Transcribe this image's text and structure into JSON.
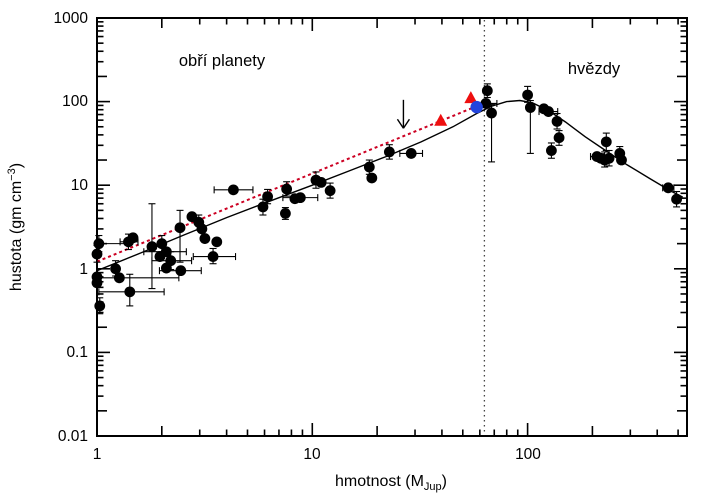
{
  "chart_data": {
    "type": "scatter",
    "title": "",
    "xlabel": "hmotnost (M_Jup)",
    "ylabel": "hustota (gm cm^-3)",
    "xlabel_parts": {
      "pre": "hmotnost (M",
      "sub": "Jup",
      "post": ")"
    },
    "ylabel_parts": {
      "pre": "hustota (gm cm",
      "sup": "−3",
      "post": ")"
    },
    "xscale": "log",
    "yscale": "log",
    "xlim": [
      1,
      550
    ],
    "ylim": [
      0.01,
      1000
    ],
    "grid": false,
    "legend": "none",
    "x_tick_labels": [
      "1",
      "10",
      "100"
    ],
    "y_tick_labels": [
      "1000",
      "100",
      "10",
      "1",
      "0.1",
      "0.01"
    ],
    "annotations": {
      "planet_region": "obří planety",
      "star_region": "hvězdy",
      "divider_mass": 63,
      "arrow": {
        "mass": 26.5,
        "from_density": 105,
        "to_density": 48
      }
    },
    "colors": {
      "points": "#000000",
      "fit_line": "#cc0022",
      "model_curve": "#000000",
      "triangles": "#ee0f0f",
      "highlight_point": "#2244dd",
      "divider": "#444444"
    },
    "series": [
      {
        "name": "model-curve-solid-black",
        "type": "line",
        "color": "#000000",
        "width": 1.4,
        "dash": "",
        "points": [
          [
            1,
            0.95
          ],
          [
            1.6,
            1.55
          ],
          [
            2.5,
            2.5
          ],
          [
            4,
            4.1
          ],
          [
            6.5,
            6.6
          ],
          [
            10,
            10
          ],
          [
            15,
            15
          ],
          [
            22,
            22
          ],
          [
            32,
            33
          ],
          [
            45,
            50
          ],
          [
            58,
            72
          ],
          [
            68,
            88
          ],
          [
            80,
            100
          ],
          [
            92,
            103
          ],
          [
            105,
            97
          ],
          [
            125,
            78
          ],
          [
            150,
            57
          ],
          [
            185,
            38
          ],
          [
            230,
            26
          ],
          [
            290,
            17.5
          ],
          [
            370,
            12
          ],
          [
            460,
            8.6
          ],
          [
            525,
            7.2
          ]
        ]
      },
      {
        "name": "fit-line-dashed-red",
        "type": "line",
        "color": "#cc0022",
        "width": 2,
        "dash": "3 3",
        "points": [
          [
            1,
            1.22
          ],
          [
            58,
            88
          ]
        ]
      },
      {
        "name": "measured-objects-black",
        "type": "scatter",
        "marker": "circle",
        "color": "#000000",
        "size": 5.4,
        "points": [
          {
            "m": 1.02,
            "d": 2.0,
            "xe": [
              1.0,
              1.38
            ],
            "ye": [
              1.6,
              2.5
            ]
          },
          {
            "m": 1.0,
            "d": 1.5,
            "ye": [
              1.2,
              1.9
            ]
          },
          {
            "m": 1.0,
            "d": 0.8
          },
          {
            "m": 1.0,
            "d": 0.68
          },
          {
            "m": 1.03,
            "d": 0.36,
            "ye": [
              0.29,
              0.45
            ]
          },
          {
            "m": 1.22,
            "d": 1.0,
            "ye": [
              0.82,
              1.25
            ]
          },
          {
            "m": 1.27,
            "d": 0.78,
            "xe": [
              1.0,
              2.4
            ]
          },
          {
            "m": 1.4,
            "d": 2.1,
            "xe": [
              1.28,
              1.55
            ],
            "ye": [
              1.7,
              2.6
            ]
          },
          {
            "m": 1.47,
            "d": 2.35
          },
          {
            "m": 1.42,
            "d": 0.53,
            "xe": [
              1.02,
              2.05
            ],
            "ye": [
              0.36,
              0.86
            ]
          },
          {
            "m": 1.8,
            "d": 1.84,
            "ye": [
              0.58,
              6.0
            ]
          },
          {
            "m": 1.96,
            "d": 1.4
          },
          {
            "m": 2.0,
            "d": 2.0,
            "ye": [
              1.6,
              2.5
            ]
          },
          {
            "m": 2.1,
            "d": 1.6,
            "xe": [
              1.65,
              2.6
            ]
          },
          {
            "m": 2.2,
            "d": 1.25,
            "xe": [
              1.8,
              2.75
            ],
            "ye": [
              0.98,
              1.6
            ]
          },
          {
            "m": 2.1,
            "d": 1.02
          },
          {
            "m": 2.45,
            "d": 0.95,
            "xe": [
              1.95,
              3.05
            ]
          },
          {
            "m": 2.43,
            "d": 3.1,
            "ye": [
              1.2,
              5.0
            ]
          },
          {
            "m": 2.76,
            "d": 4.2
          },
          {
            "m": 2.97,
            "d": 3.6,
            "ye": [
              2.9,
              4.4
            ]
          },
          {
            "m": 3.07,
            "d": 3.0
          },
          {
            "m": 3.17,
            "d": 2.3
          },
          {
            "m": 3.46,
            "d": 1.4,
            "xe": [
              2.8,
              4.4
            ],
            "ye": [
              1.15,
              1.75
            ]
          },
          {
            "m": 3.6,
            "d": 2.1
          },
          {
            "m": 4.3,
            "d": 8.8,
            "xe": [
              3.5,
              5.3
            ]
          },
          {
            "m": 5.9,
            "d": 5.5,
            "ye": [
              4.4,
              6.8
            ]
          },
          {
            "m": 6.2,
            "d": 7.3,
            "ye": [
              6.0,
              8.9
            ]
          },
          {
            "m": 7.6,
            "d": 9.0,
            "ye": [
              7.4,
              11
            ]
          },
          {
            "m": 7.5,
            "d": 4.6,
            "ye": [
              3.9,
              5.4
            ]
          },
          {
            "m": 8.3,
            "d": 6.9
          },
          {
            "m": 8.8,
            "d": 7.1,
            "xe": [
              7.3,
              10.6
            ]
          },
          {
            "m": 10.4,
            "d": 11.5,
            "ye": [
              9.2,
              14.4
            ]
          },
          {
            "m": 11.0,
            "d": 10.8
          },
          {
            "m": 12.1,
            "d": 8.6,
            "ye": [
              7.0,
              10.6
            ]
          },
          {
            "m": 18.4,
            "d": 16.5,
            "ye": [
              13.5,
              20
            ]
          },
          {
            "m": 18.9,
            "d": 12.2
          },
          {
            "m": 22.8,
            "d": 25,
            "ye": [
              20.5,
              30.5
            ]
          },
          {
            "m": 28.8,
            "d": 24,
            "xe": [
              25.5,
              32.5
            ]
          },
          {
            "m": 65,
            "d": 135,
            "ye": [
              112,
              163
            ]
          },
          {
            "m": 64,
            "d": 95,
            "xe": [
              57,
              72
            ]
          },
          {
            "m": 68,
            "d": 73,
            "ye": [
              19,
              92
            ]
          },
          {
            "m": 100,
            "d": 120,
            "ye": [
              98,
              152
            ]
          },
          {
            "m": 103,
            "d": 85,
            "ye": [
              24,
              103
            ]
          },
          {
            "m": 119,
            "d": 82
          },
          {
            "m": 125,
            "d": 76,
            "xe": [
              113,
              138
            ]
          },
          {
            "m": 137,
            "d": 58,
            "ye": [
              47,
              72
            ]
          },
          {
            "m": 140,
            "d": 37,
            "ye": [
              30,
              45
            ]
          },
          {
            "m": 129,
            "d": 26,
            "ye": [
              21,
              32
            ]
          },
          {
            "m": 232,
            "d": 33,
            "ye": [
              26,
              42
            ]
          },
          {
            "m": 210,
            "d": 22,
            "xe": [
              196,
              226
            ]
          },
          {
            "m": 219,
            "d": 21
          },
          {
            "m": 228,
            "d": 20,
            "ye": [
              16.5,
              25
            ]
          },
          {
            "m": 239,
            "d": 21,
            "ye": [
              17,
              26
            ]
          },
          {
            "m": 268,
            "d": 24,
            "ye": [
              19.5,
              29
            ]
          },
          {
            "m": 273,
            "d": 20
          },
          {
            "m": 450,
            "d": 9.3,
            "xe": [
              424,
              478
            ]
          },
          {
            "m": 492,
            "d": 6.8,
            "ye": [
              5.5,
              8.4
            ]
          }
        ]
      },
      {
        "name": "red-triangles",
        "type": "scatter",
        "marker": "triangle",
        "color": "#ee0f0f",
        "size": 7,
        "points": [
          {
            "m": 39.5,
            "d": 59
          },
          {
            "m": 54.5,
            "d": 110
          }
        ]
      },
      {
        "name": "blue-highlight-point",
        "type": "scatter",
        "marker": "circle",
        "color": "#2244dd",
        "size": 6.2,
        "points": [
          {
            "m": 58,
            "d": 86
          }
        ]
      }
    ]
  }
}
